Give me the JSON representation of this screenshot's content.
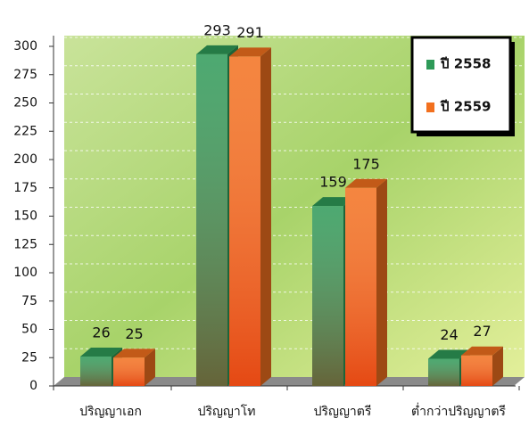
{
  "chart_data": {
    "type": "bar3d",
    "categories": [
      "ปริญญาเอก",
      "ปริญญาโท",
      "ปริญญาตรี",
      "ต่ำกว่าปริญญาตรี"
    ],
    "series": [
      {
        "name": "ปี 2558",
        "color": "#2e9a58",
        "values": [
          26,
          293,
          159,
          24
        ]
      },
      {
        "name": "ปี 2559",
        "color": "#f2701e",
        "values": [
          25,
          291,
          175,
          27
        ]
      }
    ],
    "ylim": [
      0,
      300
    ],
    "yticks": [
      0,
      25,
      50,
      75,
      100,
      125,
      150,
      175,
      200,
      225,
      250,
      275,
      300
    ],
    "grid": true,
    "legend": "top-right"
  }
}
